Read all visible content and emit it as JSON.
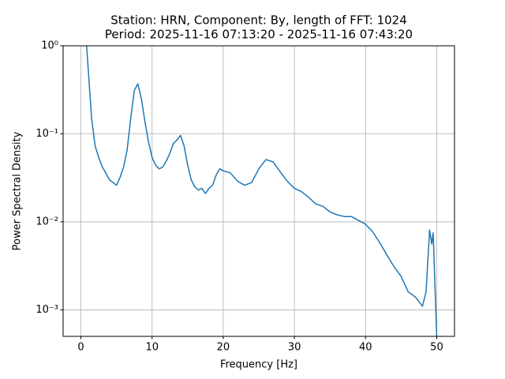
{
  "chart_data": {
    "type": "line",
    "title": "Station: HRN, Component: By, length of FFT: 1024",
    "subtitle": "Period: 2025-11-16 07:13:20 - 2025-11-16 07:43:20",
    "xlabel": "Frequency [Hz]",
    "ylabel": "Power Spectral Density",
    "x": [
      0.8,
      1.5,
      2,
      2.5,
      3,
      3.5,
      4,
      4.5,
      5,
      5.5,
      6,
      6.5,
      7,
      7.5,
      8,
      8.5,
      9,
      9.5,
      10,
      10.5,
      11,
      11.5,
      12,
      12.5,
      13,
      13.5,
      14,
      14.5,
      15,
      15.5,
      16,
      16.5,
      17,
      17.5,
      18,
      18.5,
      19,
      19.5,
      20,
      21,
      22,
      23,
      24,
      25,
      26,
      27,
      28,
      29,
      30,
      31,
      32,
      33,
      34,
      35,
      36,
      37,
      38,
      39,
      40,
      41,
      42,
      43,
      44,
      45,
      46,
      47,
      48,
      48.5,
      49,
      49.3,
      49.5,
      50
    ],
    "series": [
      {
        "color": "#1f77b4",
        "values": [
          1.0,
          0.15,
          0.073,
          0.054,
          0.042,
          0.036,
          0.03,
          0.028,
          0.026,
          0.032,
          0.042,
          0.066,
          0.15,
          0.31,
          0.37,
          0.25,
          0.137,
          0.081,
          0.054,
          0.044,
          0.04,
          0.042,
          0.049,
          0.06,
          0.078,
          0.085,
          0.096,
          0.073,
          0.044,
          0.03,
          0.025,
          0.023,
          0.024,
          0.021,
          0.024,
          0.026,
          0.034,
          0.04,
          0.038,
          0.036,
          0.029,
          0.026,
          0.028,
          0.04,
          0.051,
          0.048,
          0.037,
          0.029,
          0.024,
          0.022,
          0.019,
          0.016,
          0.015,
          0.013,
          0.012,
          0.0115,
          0.0115,
          0.0104,
          0.0094,
          0.0077,
          0.0058,
          0.0042,
          0.0031,
          0.0024,
          0.0016,
          0.0014,
          0.0011,
          0.0016,
          0.0081,
          0.0056,
          0.0075,
          0.0005
        ]
      }
    ],
    "xlim": [
      -2.5,
      52.5
    ],
    "ylim": [
      0.0005,
      1
    ],
    "yscale": "log",
    "xticks": [
      0,
      10,
      20,
      30,
      40,
      50
    ],
    "yticks": [
      {
        "value": 0.001,
        "label": "10⁻³"
      },
      {
        "value": 0.01,
        "label": "10⁻²"
      },
      {
        "value": 0.1,
        "label": "10⁻¹"
      },
      {
        "value": 1,
        "label": "10⁰"
      }
    ],
    "grid": true
  }
}
